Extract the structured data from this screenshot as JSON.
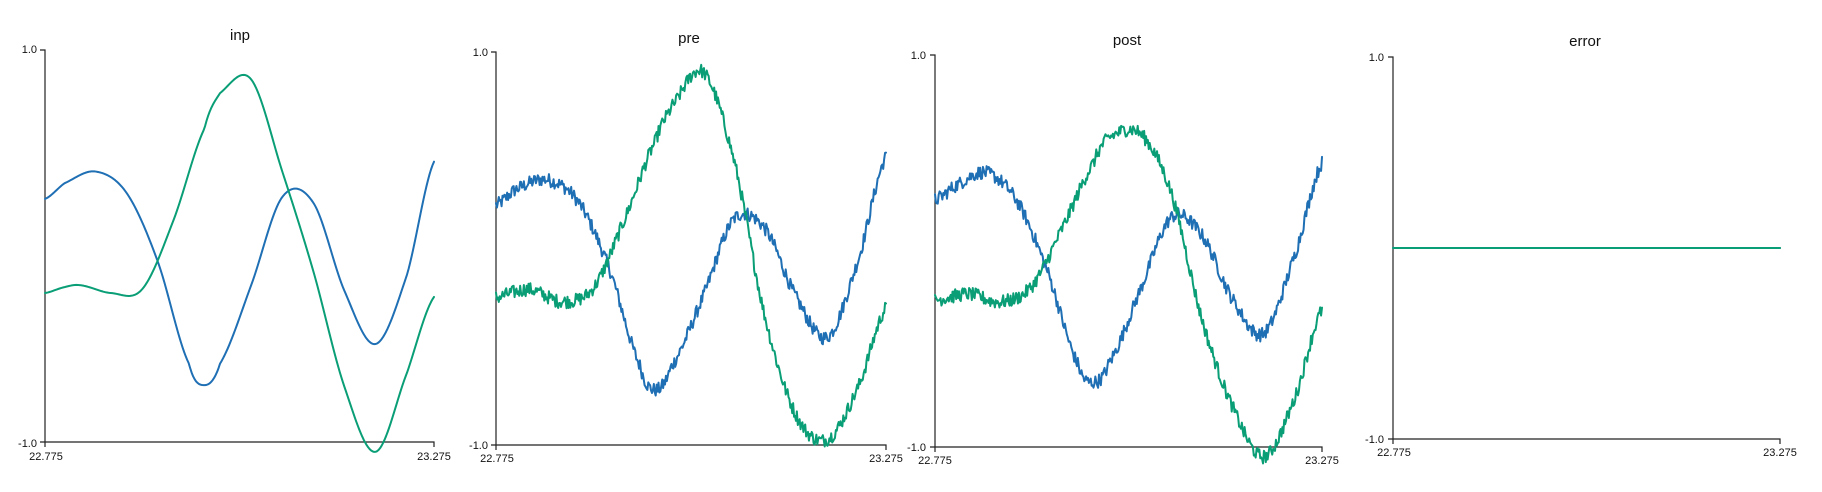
{
  "colors": {
    "blue": "#1f6fb4",
    "green": "#0a9e76"
  },
  "chart_data": [
    {
      "type": "line",
      "title": "inp",
      "xlim": [
        22.775,
        23.275
      ],
      "ylim": [
        -1.0,
        1.0
      ],
      "x_tick_labels": [
        "22.775",
        "23.275"
      ],
      "y_tick_labels": [
        "1.0",
        "-1.0"
      ],
      "noise": 0,
      "series": [
        {
          "color": "blue",
          "x": [
            22.775,
            22.8,
            22.84,
            22.88,
            22.92,
            22.96,
            22.98,
            23.0,
            23.04,
            23.08,
            23.12,
            23.16,
            23.2,
            23.24,
            23.275
          ],
          "y": [
            0.24,
            0.32,
            0.38,
            0.27,
            -0.08,
            -0.6,
            -0.71,
            -0.6,
            -0.2,
            0.25,
            0.22,
            -0.23,
            -0.5,
            -0.15,
            0.43
          ]
        },
        {
          "color": "green",
          "x": [
            22.775,
            22.8,
            22.82,
            22.86,
            22.9,
            22.94,
            22.98,
            23.0,
            23.04,
            23.08,
            23.12,
            23.16,
            23.2,
            23.24,
            23.275
          ],
          "y": [
            -0.24,
            -0.21,
            -0.2,
            -0.24,
            -0.22,
            0.13,
            0.6,
            0.78,
            0.85,
            0.38,
            -0.13,
            -0.72,
            -1.05,
            -0.65,
            -0.26
          ]
        }
      ]
    },
    {
      "type": "line",
      "title": "pre",
      "xlim": [
        22.775,
        23.275
      ],
      "ylim": [
        -1.0,
        1.0
      ],
      "x_tick_labels": [
        "22.775",
        "23.275"
      ],
      "y_tick_labels": [
        "1.0",
        "-1.0"
      ],
      "noise": 0.035,
      "series": [
        {
          "color": "blue",
          "x": [
            22.775,
            22.8,
            22.84,
            22.88,
            22.92,
            22.96,
            22.98,
            23.0,
            23.04,
            23.08,
            23.12,
            23.16,
            23.2,
            23.24,
            23.275
          ],
          "y": [
            0.22,
            0.3,
            0.35,
            0.24,
            -0.1,
            -0.6,
            -0.72,
            -0.6,
            -0.25,
            0.15,
            0.1,
            -0.25,
            -0.45,
            -0.05,
            0.47
          ]
        },
        {
          "color": "green",
          "x": [
            22.775,
            22.8,
            22.82,
            22.86,
            22.9,
            22.94,
            22.98,
            23.0,
            23.04,
            23.08,
            23.12,
            23.16,
            23.2,
            23.24,
            23.275
          ],
          "y": [
            -0.25,
            -0.22,
            -0.21,
            -0.27,
            -0.2,
            0.15,
            0.55,
            0.72,
            0.9,
            0.45,
            -0.35,
            -0.85,
            -0.97,
            -0.7,
            -0.3
          ]
        }
      ]
    },
    {
      "type": "line",
      "title": "post",
      "xlim": [
        22.775,
        23.275
      ],
      "ylim": [
        -1.0,
        1.0
      ],
      "x_tick_labels": [
        "22.775",
        "23.275"
      ],
      "y_tick_labels": [
        "1.0",
        "-1.0"
      ],
      "noise": 0.035,
      "series": [
        {
          "color": "blue",
          "x": [
            22.775,
            22.8,
            22.84,
            22.88,
            22.92,
            22.96,
            22.98,
            23.0,
            23.04,
            23.08,
            23.12,
            23.16,
            23.2,
            23.24,
            23.275
          ],
          "y": [
            0.26,
            0.33,
            0.4,
            0.26,
            -0.1,
            -0.58,
            -0.67,
            -0.57,
            -0.2,
            0.17,
            0.08,
            -0.25,
            -0.42,
            -0.02,
            0.45
          ]
        },
        {
          "color": "green",
          "x": [
            22.775,
            22.8,
            22.82,
            22.86,
            22.9,
            22.94,
            22.98,
            23.0,
            23.04,
            23.08,
            23.12,
            23.16,
            23.2,
            23.24,
            23.275
          ],
          "y": [
            -0.25,
            -0.23,
            -0.22,
            -0.26,
            -0.18,
            0.12,
            0.45,
            0.58,
            0.6,
            0.3,
            -0.35,
            -0.8,
            -1.05,
            -0.75,
            -0.3
          ]
        }
      ]
    },
    {
      "type": "line",
      "title": "error",
      "xlim": [
        22.775,
        23.275
      ],
      "ylim": [
        -1.0,
        1.0
      ],
      "x_tick_labels": [
        "22.775",
        "23.275"
      ],
      "y_tick_labels": [
        "1.0",
        "-1.0"
      ],
      "noise": 0,
      "series": [
        {
          "color": "blue",
          "x": [
            22.775,
            23.275
          ],
          "y": [
            0,
            0
          ]
        },
        {
          "color": "green",
          "x": [
            22.775,
            23.275
          ],
          "y": [
            0,
            0
          ]
        }
      ]
    }
  ]
}
